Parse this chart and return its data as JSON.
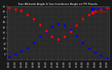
{
  "title": "Sun Altitude Angle & Sun Incidence Angle on PV Panels",
  "blue_color": "#0000ff",
  "red_color": "#ff0000",
  "bg_color": "#1a1a1a",
  "plot_bg_color": "#2a2a2a",
  "grid_color": "#555555",
  "text_color": "#ffffff",
  "ylim": [
    -10,
    90
  ],
  "ytick_vals": [
    0,
    10,
    20,
    30,
    40,
    50,
    60,
    70,
    80,
    90
  ],
  "hours": [
    4,
    5,
    6,
    7,
    8,
    9,
    10,
    11,
    12,
    13,
    14,
    15,
    16,
    17,
    18,
    19,
    20
  ],
  "sun_altitude": [
    -5,
    0,
    5,
    12,
    22,
    33,
    43,
    52,
    57,
    54,
    46,
    35,
    22,
    11,
    3,
    -3,
    -8
  ],
  "sun_incidence": [
    88,
    85,
    82,
    75,
    67,
    56,
    44,
    34,
    28,
    33,
    43,
    55,
    66,
    75,
    81,
    85,
    88
  ],
  "marker_size": 2.5,
  "title_fontsize": 3.0,
  "tick_fontsize": 2.2,
  "legend_fontsize": 2.2
}
